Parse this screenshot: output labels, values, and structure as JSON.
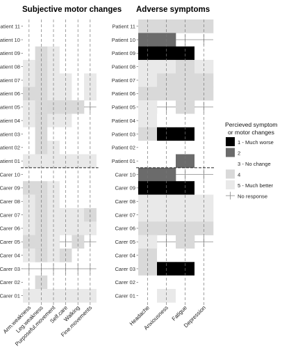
{
  "chart_data": [
    {
      "type": "heatmap",
      "title": "Subjective motor changes",
      "x": [
        "Arm.weakness",
        "Leg.weakness",
        "Purposeful.movement",
        "Self.care",
        "Walking",
        "Fine.movements"
      ],
      "y": [
        "Patient 11",
        "Patient 10",
        "Patient 09",
        "Patient 08",
        "Patient 07",
        "Patient 06",
        "Patient 05",
        "Patient 04",
        "Patient 03",
        "Patient 02",
        "Patient 01",
        "Carer 10",
        "Carer 09",
        "Carer 08",
        "Carer 07",
        "Carer 06",
        "Carer 05",
        "Carer 04",
        "Carer 03",
        "Carer 02",
        "Carer 01"
      ],
      "values": [
        [
          3,
          3,
          3,
          3,
          3,
          3
        ],
        [
          3,
          3,
          3,
          3,
          3,
          3
        ],
        [
          3,
          4,
          5,
          3,
          3,
          3
        ],
        [
          5,
          4,
          5,
          3,
          3,
          3
        ],
        [
          5,
          4,
          5,
          5,
          3,
          5
        ],
        [
          4,
          4,
          5,
          5,
          3,
          5
        ],
        [
          5,
          4,
          4,
          4,
          4,
          0
        ],
        [
          5,
          4,
          5,
          5,
          3,
          3
        ],
        [
          3,
          4,
          3,
          3,
          3,
          3
        ],
        [
          3,
          4,
          5,
          3,
          3,
          3
        ],
        [
          5,
          5,
          5,
          5,
          5,
          5
        ],
        [
          3,
          3,
          3,
          3,
          3,
          3
        ],
        [
          4,
          4,
          5,
          3,
          3,
          3
        ],
        [
          5,
          4,
          5,
          3,
          3,
          3
        ],
        [
          5,
          4,
          5,
          5,
          5,
          4
        ],
        [
          5,
          4,
          5,
          5,
          5,
          5
        ],
        [
          4,
          4,
          5,
          0,
          4,
          0
        ],
        [
          5,
          4,
          5,
          4,
          3,
          3
        ],
        [
          0,
          0,
          0,
          0,
          0,
          0
        ],
        [
          3,
          4,
          3,
          3,
          3,
          3
        ],
        [
          5,
          5,
          5,
          5,
          5,
          5
        ]
      ],
      "value_encoding": "1 = Much worse, 2, 3 = No change, 4, 5 = Much better, 0 = No response"
    },
    {
      "type": "heatmap",
      "title": "Adverse symptoms",
      "x": [
        "Headache",
        "Anxiousness",
        "Fatigue",
        "Depression"
      ],
      "y": [
        "Patient 11",
        "Patient 10",
        "Patient 09",
        "Patient 08",
        "Patient 07",
        "Patient 06",
        "Patient 05",
        "Patient 04",
        "Patient 03",
        "Patient 02",
        "Patient 01",
        "Carer 10",
        "Carer 09",
        "Carer 08",
        "Carer 07",
        "Carer 06",
        "Carer 05",
        "Carer 04",
        "Carer 03",
        "Carer 02",
        "Carer 01"
      ],
      "values": [
        [
          4,
          4,
          4,
          4
        ],
        [
          2,
          2,
          0,
          0
        ],
        [
          1,
          1,
          1,
          3
        ],
        [
          5,
          5,
          4,
          5
        ],
        [
          5,
          4,
          4,
          4
        ],
        [
          4,
          4,
          4,
          4
        ],
        [
          5,
          0,
          4,
          0
        ],
        [
          5,
          3,
          3,
          3
        ],
        [
          4,
          1,
          1,
          3
        ],
        [
          3,
          3,
          3,
          3
        ],
        [
          3,
          3,
          2,
          3
        ],
        [
          2,
          2,
          0,
          0
        ],
        [
          1,
          1,
          1,
          3
        ],
        [
          5,
          5,
          5,
          5
        ],
        [
          5,
          5,
          5,
          5
        ],
        [
          4,
          4,
          4,
          4
        ],
        [
          5,
          0,
          4,
          0
        ],
        [
          4,
          3,
          3,
          3
        ],
        [
          4,
          1,
          1,
          3
        ],
        [
          3,
          3,
          3,
          3
        ],
        [
          3,
          5,
          3,
          3
        ]
      ],
      "value_encoding": "1 = Much worse, 2, 3 = No change, 4, 5 = Much better, 0 = No response"
    }
  ],
  "legend": {
    "title_line1": "Percieved symptom",
    "title_line2": "or motor changes",
    "position": "right",
    "items": [
      {
        "label": "1 - Much worse",
        "value": 1
      },
      {
        "label": "2",
        "value": 2
      },
      {
        "label": "3 - No change",
        "value": 3
      },
      {
        "label": "4",
        "value": 4
      },
      {
        "label": "5 - Much better",
        "value": 5
      },
      {
        "label": "No response",
        "value": 0
      }
    ]
  },
  "colors": {
    "1": "#000000",
    "2": "#6b6b6b",
    "3": "#ffffff",
    "4": "#d9d9d9",
    "5": "#e9e9e9",
    "grid_dash": "#777777",
    "separator": "#222222",
    "no_response": "#888888"
  }
}
